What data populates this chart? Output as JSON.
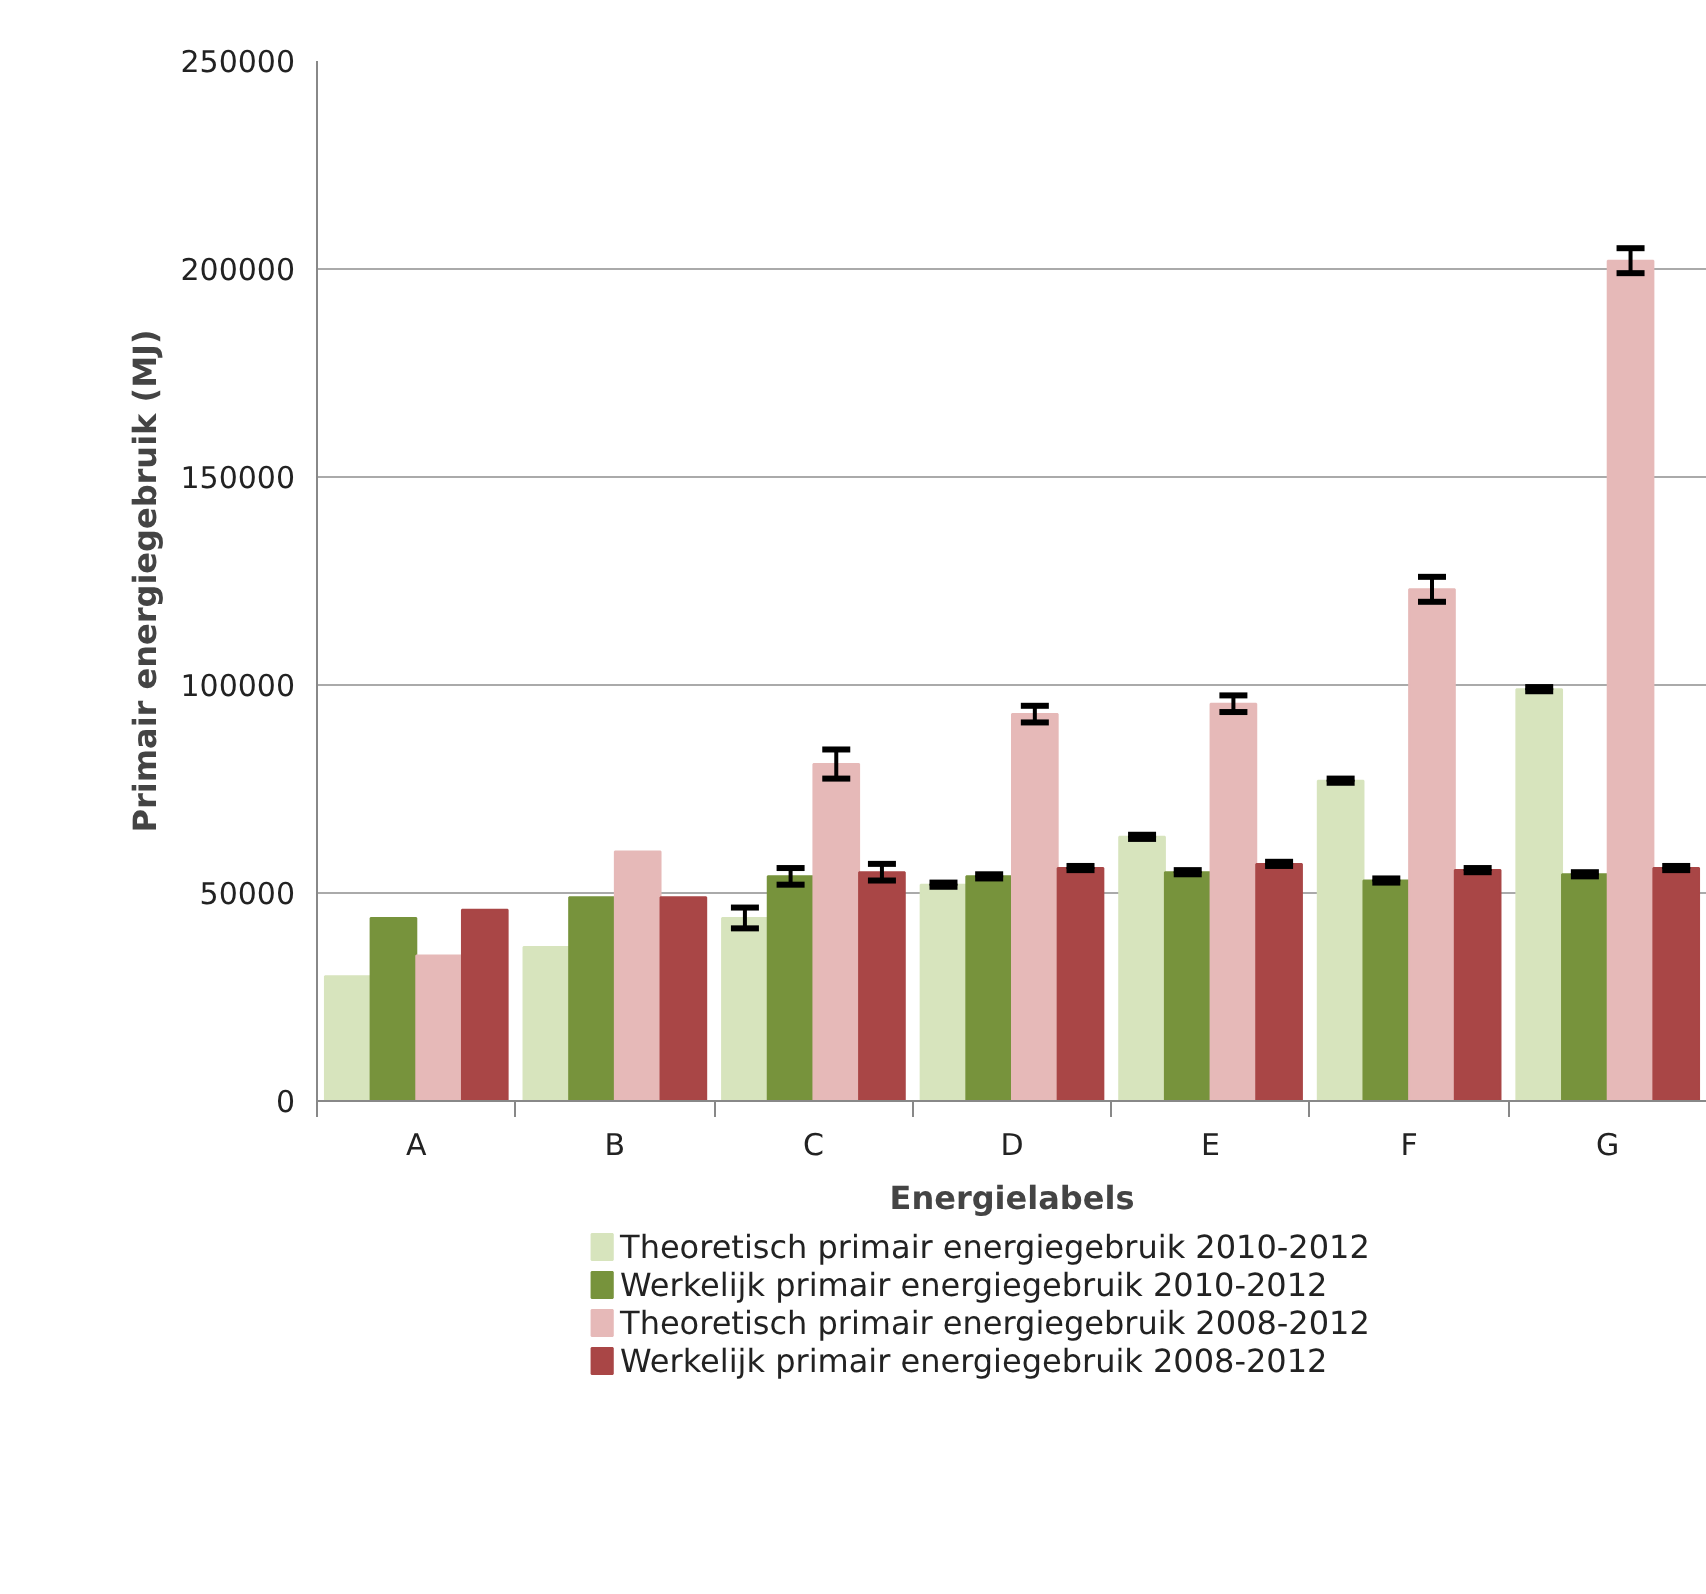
{
  "chart_data": {
    "type": "bar",
    "xlabel": "Energielabels",
    "ylabel": "Primair energiegebruik (MJ)",
    "categories": [
      "A",
      "B",
      "C",
      "D",
      "E",
      "F",
      "G"
    ],
    "series": [
      {
        "name": "Theoretisch primair energiegebruik  2010-2012",
        "color": "#d7e4bd",
        "values": [
          30000,
          37000,
          44000,
          52000,
          63500,
          77000,
          99000
        ],
        "errors": [
          null,
          null,
          2500,
          500,
          500,
          500,
          500
        ]
      },
      {
        "name": "Werkelijk primair energiegebruik   2010-2012",
        "color": "#77933c",
        "values": [
          44000,
          49000,
          54000,
          54000,
          55000,
          53000,
          54500
        ],
        "errors": [
          null,
          null,
          2000,
          500,
          500,
          500,
          500
        ]
      },
      {
        "name": "Theoretisch primair energiegebruik   2008-2012",
        "color": "#e6b9b8",
        "values": [
          35000,
          60000,
          81000,
          93000,
          95500,
          123000,
          202000
        ],
        "errors": [
          null,
          null,
          3500,
          2000,
          2000,
          3000,
          3000
        ]
      },
      {
        "name": "Werkelijk primair energiegebruik   2008-2012",
        "color": "#a94646",
        "values": [
          46000,
          49000,
          55000,
          56000,
          57000,
          55500,
          56000
        ],
        "errors": [
          null,
          null,
          2000,
          500,
          500,
          500,
          500
        ]
      }
    ],
    "ylim": [
      0,
      250000
    ],
    "yticks": [
      0,
      50000,
      100000,
      150000,
      200000,
      250000
    ],
    "grid": "y",
    "legend": "bottom"
  }
}
